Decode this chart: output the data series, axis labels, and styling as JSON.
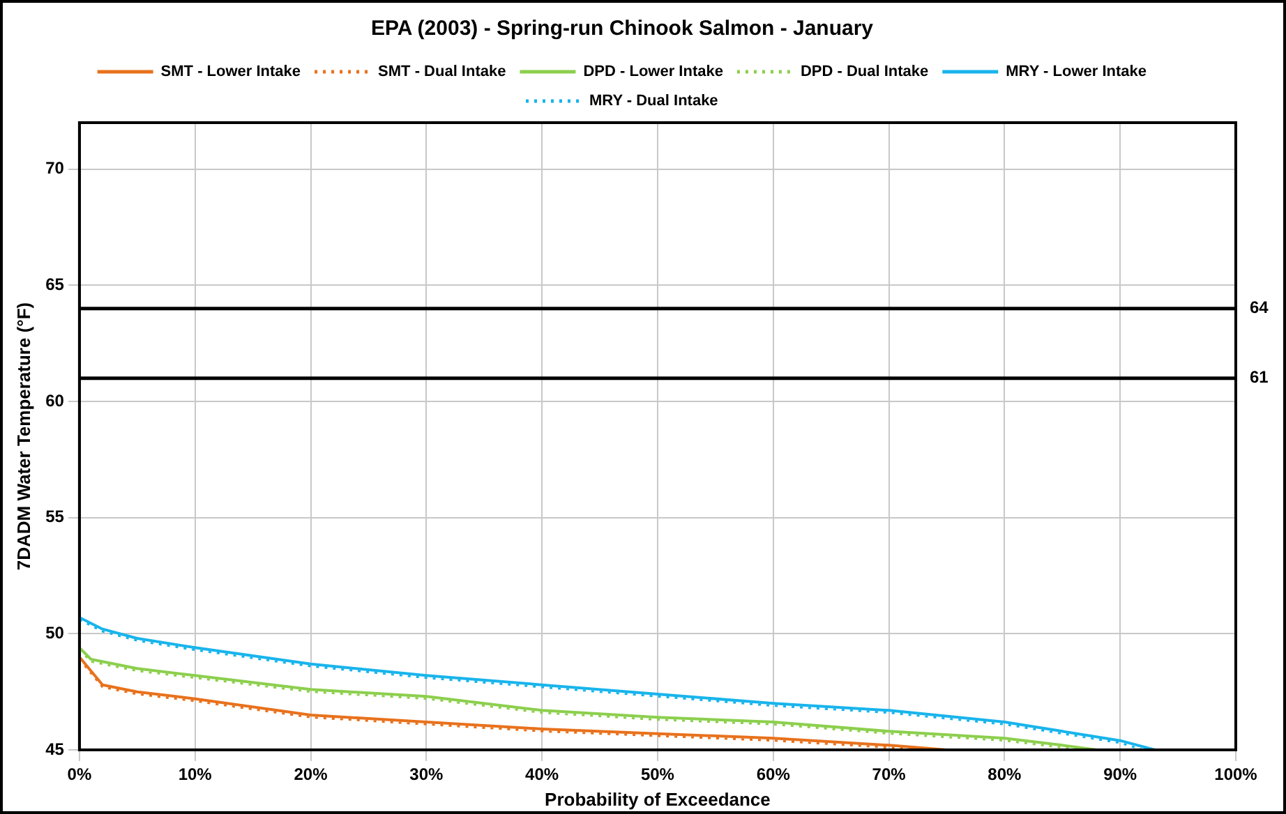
{
  "chart_data": {
    "type": "line",
    "title": "EPA (2003) - Spring-run Chinook Salmon - January",
    "xlabel": "Probability of Exceedance",
    "ylabel": "7DADM Water Temperature (°F)",
    "xlim": [
      0,
      100
    ],
    "xticks": [
      {
        "value": 0,
        "label": "0%"
      },
      {
        "value": 10,
        "label": "10%"
      },
      {
        "value": 20,
        "label": "20%"
      },
      {
        "value": 30,
        "label": "30%"
      },
      {
        "value": 40,
        "label": "40%"
      },
      {
        "value": 50,
        "label": "50%"
      },
      {
        "value": 60,
        "label": "60%"
      },
      {
        "value": 70,
        "label": "70%"
      },
      {
        "value": 80,
        "label": "80%"
      },
      {
        "value": 90,
        "label": "90%"
      },
      {
        "value": 100,
        "label": "100%"
      }
    ],
    "ylim": [
      45,
      72
    ],
    "yticks": [
      45,
      50,
      55,
      60,
      65,
      70
    ],
    "grid": true,
    "legend": "top",
    "marker": "none",
    "ref_lines": [
      {
        "axis": "y",
        "value": 64,
        "label": "64",
        "color": "#000000"
      },
      {
        "axis": "y",
        "value": 61,
        "label": "61",
        "color": "#000000"
      }
    ],
    "series": [
      {
        "name": "SMT - Lower Intake",
        "color": "#e8711c",
        "line_style": "solid",
        "x": [
          0,
          1,
          2,
          5,
          10,
          20,
          30,
          40,
          50,
          60,
          70,
          75
        ],
        "values": [
          49.0,
          48.4,
          47.8,
          47.5,
          47.2,
          46.5,
          46.2,
          45.9,
          45.7,
          45.5,
          45.2,
          45.0
        ]
      },
      {
        "name": "SMT - Dual Intake",
        "color": "#e8711c",
        "line_style": "dotted",
        "x": [
          0,
          1,
          2,
          5,
          10,
          20,
          30,
          40,
          50,
          60,
          70,
          74
        ],
        "values": [
          48.9,
          48.3,
          47.7,
          47.4,
          47.1,
          46.4,
          46.1,
          45.8,
          45.6,
          45.4,
          45.1,
          45.0
        ]
      },
      {
        "name": "DPD - Lower Intake",
        "color": "#8ccf4d",
        "line_style": "solid",
        "x": [
          0,
          1,
          5,
          10,
          20,
          30,
          40,
          50,
          60,
          70,
          80,
          85,
          88
        ],
        "values": [
          49.4,
          48.9,
          48.5,
          48.2,
          47.6,
          47.3,
          46.7,
          46.4,
          46.2,
          45.8,
          45.5,
          45.2,
          45.0
        ]
      },
      {
        "name": "DPD - Dual Intake",
        "color": "#8ccf4d",
        "line_style": "dotted",
        "x": [
          0,
          1,
          5,
          10,
          20,
          30,
          40,
          50,
          60,
          70,
          80,
          85,
          87
        ],
        "values": [
          49.3,
          48.8,
          48.4,
          48.1,
          47.5,
          47.2,
          46.6,
          46.3,
          46.1,
          45.7,
          45.4,
          45.1,
          45.0
        ]
      },
      {
        "name": "MRY - Lower Intake",
        "color": "#18b4ec",
        "line_style": "solid",
        "x": [
          0,
          2,
          5,
          10,
          20,
          30,
          40,
          50,
          60,
          70,
          80,
          85,
          90,
          93
        ],
        "values": [
          50.7,
          50.2,
          49.8,
          49.4,
          48.7,
          48.2,
          47.8,
          47.4,
          47.0,
          46.7,
          46.2,
          45.8,
          45.4,
          45.0
        ]
      },
      {
        "name": "MRY - Dual Intake",
        "color": "#18b4ec",
        "line_style": "dotted",
        "x": [
          0,
          2,
          5,
          10,
          20,
          30,
          40,
          50,
          60,
          70,
          80,
          85,
          90,
          92
        ],
        "values": [
          50.6,
          50.1,
          49.7,
          49.3,
          48.6,
          48.1,
          47.7,
          47.3,
          46.9,
          46.6,
          46.1,
          45.7,
          45.3,
          45.0
        ]
      }
    ]
  }
}
